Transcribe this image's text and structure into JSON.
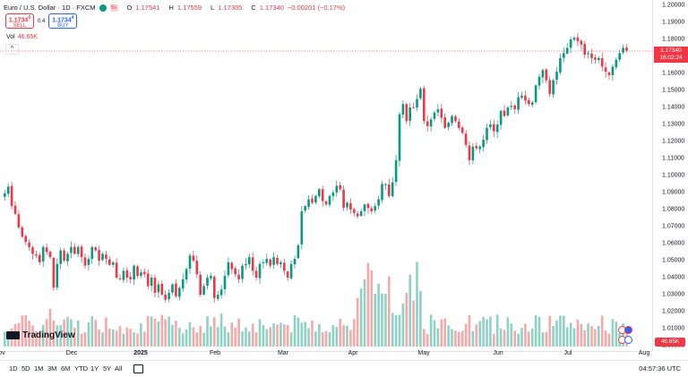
{
  "header": {
    "symbol": "Euro / U.S. Dollar · 1D · FXCM",
    "ohlc": [
      {
        "k": "O",
        "v": "1.17541"
      },
      {
        "k": "H",
        "v": "1.17559"
      },
      {
        "k": "L",
        "v": "1.17305"
      },
      {
        "k": "C",
        "v": "1.17340"
      }
    ],
    "change": "−0.00201 (−0.17%)",
    "badge": "5s"
  },
  "trade": {
    "sell_price": "1.1734",
    "sell_sup": "0",
    "sell_label": "SELL",
    "spread": "0.4",
    "buy_price": "1.1734",
    "buy_sup": "4",
    "buy_label": "BUY"
  },
  "volume_legend": {
    "label": "Vol",
    "value": "46.65K"
  },
  "collapse_glyph": "^",
  "price_tag": {
    "price": "1.17340",
    "countdown": "16:02:24"
  },
  "volume_tag": "46.65K",
  "logo_text": "TradingView",
  "price_axis": [
    "1.20000",
    "1.19000",
    "1.18000",
    "1.17000",
    "1.16000",
    "1.15000",
    "1.14000",
    "1.13000",
    "1.12000",
    "1.11000",
    "1.10000",
    "1.09000",
    "1.08000",
    "1.07000",
    "1.06000",
    "1.05000",
    "1.04000",
    "1.03000",
    "1.02000",
    "1.01000",
    "1.00000"
  ],
  "time_axis": [
    {
      "label": "ov",
      "bold": false
    },
    {
      "label": "Dec",
      "bold": false
    },
    {
      "label": "2025",
      "bold": true
    },
    {
      "label": "Feb",
      "bold": false
    },
    {
      "label": "Mar",
      "bold": false
    },
    {
      "label": "Apr",
      "bold": false
    },
    {
      "label": "May",
      "bold": false
    },
    {
      "label": "Jun",
      "bold": false
    },
    {
      "label": "Jul",
      "bold": false
    },
    {
      "label": "Aug",
      "bold": false
    }
  ],
  "ranges": [
    "1D",
    "5D",
    "1M",
    "3M",
    "6M",
    "YTD",
    "1Y",
    "5Y",
    "All"
  ],
  "clock": "04:57:36 UTC",
  "colors": {
    "up": "#089981",
    "down": "#f23645",
    "up_vol": "#8fd1c4",
    "down_vol": "#f7a9a9",
    "accent": "#2962ff"
  },
  "chart_data": {
    "type": "candlestick",
    "ylim": [
      1.0,
      1.2
    ],
    "closes": [
      1.0895,
      1.0935,
      1.082,
      1.0775,
      1.0695,
      1.064,
      1.061,
      1.058,
      1.054,
      1.053,
      1.049,
      1.058,
      1.055,
      1.052,
      1.034,
      1.048,
      1.056,
      1.05,
      1.054,
      1.058,
      1.054,
      1.058,
      1.052,
      1.047,
      1.051,
      1.058,
      1.056,
      1.05,
      1.054,
      1.051,
      1.0475,
      1.049,
      1.04,
      1.039,
      1.044,
      1.04,
      1.039,
      1.047,
      1.041,
      1.043,
      1.042,
      1.035,
      1.04,
      1.031,
      1.036,
      1.03,
      1.027,
      1.031,
      1.036,
      1.029,
      1.034,
      1.039,
      1.045,
      1.053,
      1.05,
      1.042,
      1.03,
      1.035,
      1.04,
      1.041,
      1.028,
      1.03,
      1.033,
      1.041,
      1.049,
      1.045,
      1.042,
      1.039,
      1.047,
      1.048,
      1.052,
      1.044,
      1.04,
      1.048,
      1.049,
      1.051,
      1.047,
      1.052,
      1.048,
      1.049,
      1.044,
      1.04,
      1.048,
      1.051,
      1.059,
      1.079,
      1.082,
      1.086,
      1.084,
      1.088,
      1.092,
      1.085,
      1.083,
      1.088,
      1.09,
      1.094,
      1.092,
      1.081,
      1.084,
      1.08,
      1.078,
      1.076,
      1.079,
      1.083,
      1.081,
      1.079,
      1.082,
      1.086,
      1.095,
      1.095,
      1.088,
      1.096,
      1.109,
      1.136,
      1.142,
      1.132,
      1.14,
      1.14,
      1.145,
      1.151,
      1.132,
      1.129,
      1.133,
      1.137,
      1.139,
      1.134,
      1.128,
      1.131,
      1.135,
      1.132,
      1.128,
      1.125,
      1.118,
      1.109,
      1.117,
      1.116,
      1.117,
      1.121,
      1.128,
      1.13,
      1.126,
      1.13,
      1.138,
      1.135,
      1.14,
      1.141,
      1.139,
      1.146,
      1.147,
      1.144,
      1.142,
      1.143,
      1.153,
      1.158,
      1.162,
      1.156,
      1.148,
      1.156,
      1.161,
      1.169,
      1.172,
      1.175,
      1.18,
      1.181,
      1.179,
      1.177,
      1.171,
      1.172,
      1.169,
      1.168,
      1.169,
      1.164,
      1.161,
      1.159,
      1.164,
      1.168,
      1.172,
      1.175,
      1.1734
    ]
  }
}
